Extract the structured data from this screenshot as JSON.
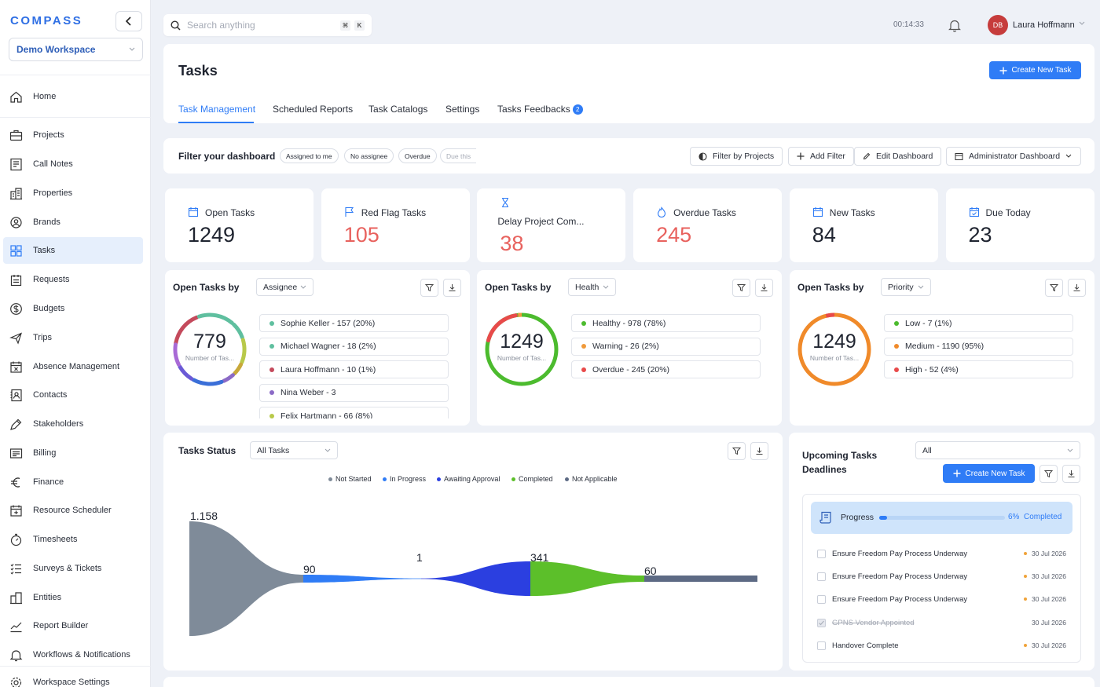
{
  "brand": {
    "logo": "COMPASS",
    "workspace": "Demo Workspace"
  },
  "nav": [
    {
      "label": "Home",
      "icon": "home-icon"
    },
    {
      "label": "Projects",
      "icon": "briefcase-icon"
    },
    {
      "label": "Call Notes",
      "icon": "notes-icon"
    },
    {
      "label": "Properties",
      "icon": "building-icon"
    },
    {
      "label": "Brands",
      "icon": "brand-icon"
    },
    {
      "label": "Tasks",
      "icon": "grid-icon",
      "active": true
    },
    {
      "label": "Requests",
      "icon": "requests-icon"
    },
    {
      "label": "Budgets",
      "icon": "dollar-icon"
    },
    {
      "label": "Trips",
      "icon": "plane-icon"
    },
    {
      "label": "Absence Management",
      "icon": "calendar-x-icon"
    },
    {
      "label": "Contacts",
      "icon": "contacts-icon"
    },
    {
      "label": "Stakeholders",
      "icon": "pen-icon"
    },
    {
      "label": "Billing",
      "icon": "billing-icon"
    },
    {
      "label": "Finance",
      "icon": "euro-icon"
    },
    {
      "label": "Resource Scheduler",
      "icon": "calendar-plus-icon"
    },
    {
      "label": "Timesheets",
      "icon": "stopwatch-icon"
    },
    {
      "label": "Surveys & Tickets",
      "icon": "checklist-icon"
    },
    {
      "label": "Entities",
      "icon": "entities-icon"
    },
    {
      "label": "Report Builder",
      "icon": "chart-icon"
    },
    {
      "label": "Workflows & Notifications",
      "icon": "bell-icon"
    },
    {
      "label": "Workspace Settings",
      "icon": "gear-icon"
    }
  ],
  "topbar": {
    "search_placeholder": "Search anything",
    "kbd1": "⌘",
    "kbd2": "K",
    "timer": "00:14:33",
    "avatar_initials": "DB",
    "user_name": "Laura Hoffmann"
  },
  "page": {
    "title": "Tasks",
    "create_button": "Create New Task"
  },
  "tabs": [
    {
      "label": "Task Management"
    },
    {
      "label": "Scheduled Reports"
    },
    {
      "label": "Task Catalogs"
    },
    {
      "label": "Settings"
    },
    {
      "label": "Tasks Feedbacks",
      "badge": "2"
    }
  ],
  "filter": {
    "title": "Filter your dashboard",
    "chips": [
      "Assigned to me",
      "No assignee",
      "Overdue",
      "Due this"
    ],
    "filter_projects": "Filter by Projects",
    "add_filter": "Add Filter",
    "edit_dashboard": "Edit Dashboard",
    "admin_dashboard": "Administrator Dashboard"
  },
  "stats": [
    {
      "label": "Open Tasks",
      "value": "1249",
      "icon": "calendar-icon"
    },
    {
      "label": "Red Flag Tasks",
      "value": "105",
      "icon": "flag-icon",
      "color": "#e8625e"
    },
    {
      "label": "Delay Project Com...",
      "value": "38",
      "icon": "hourglass-icon",
      "color": "#e8625e"
    },
    {
      "label": "Overdue Tasks",
      "value": "245",
      "icon": "fire-icon",
      "color": "#e8625e"
    },
    {
      "label": "New Tasks",
      "value": "84",
      "icon": "calendar-icon"
    },
    {
      "label": "Due Today",
      "value": "23",
      "icon": "calendar-check-icon"
    }
  ],
  "panels": [
    {
      "title": "Open Tasks by",
      "select": "Assignee",
      "total": "779",
      "sub": "Number of Tas...",
      "legend": [
        {
          "label": "Sophie Keller - 157 (20%)",
          "color": "#5fbf9f"
        },
        {
          "label": "Michael Wagner - 18 (2%)",
          "color": "#5fbf9f"
        },
        {
          "label": "Laura Hoffmann - 10 (1%)",
          "color": "#c44a5c"
        },
        {
          "label": "Nina Weber - 3",
          "color": "#8b6ac6"
        },
        {
          "label": "Felix Hartmann - 66 (8%)",
          "color": "#b8c94a"
        }
      ]
    },
    {
      "title": "Open Tasks by",
      "select": "Health",
      "total": "1249",
      "sub": "Number of Tas...",
      "legend": [
        {
          "label": "Healthy - 978 (78%)",
          "color": "#4cbb2e"
        },
        {
          "label": "Warning - 26 (2%)",
          "color": "#f09a3a"
        },
        {
          "label": "Overdue - 245 (20%)",
          "color": "#e84a4a"
        }
      ]
    },
    {
      "title": "Open Tasks by",
      "select": "Priority",
      "total": "1249",
      "sub": "Number of Tas...",
      "legend": [
        {
          "label": "Low - 7 (1%)",
          "color": "#4cbb2e"
        },
        {
          "label": "Medium - 1190 (95%)",
          "color": "#f08a2a"
        },
        {
          "label": "High - 52 (4%)",
          "color": "#e84a4a"
        }
      ]
    }
  ],
  "status": {
    "title": "Tasks Status",
    "select": "All Tasks"
  },
  "chart_data": {
    "type": "area",
    "title": "Tasks Status",
    "categories": [
      "Not Started",
      "In Progress",
      "Awaiting Approval",
      "Completed",
      "Not Applicable"
    ],
    "values": [
      1158,
      90,
      1,
      341,
      60
    ],
    "labels": [
      "1.158",
      "90",
      "1",
      "341",
      "60"
    ],
    "series_colors": [
      "#7f8b99",
      "#2f7cf6",
      "#2b3fe0",
      "#5cbf2a",
      "#5d6a84"
    ],
    "legend_position": "top-center"
  },
  "upcoming": {
    "title": "Upcoming Tasks Deadlines",
    "select": "All",
    "create_button": "Create New Task",
    "progress_label": "Progress",
    "progress_value": 0.06,
    "progress_pct": "6%",
    "progress_status": "Completed",
    "tasks": [
      {
        "label": "Ensure Freedom Pay Process Underway",
        "date": "30 Jul 2026",
        "done": false
      },
      {
        "label": "Ensure Freedom Pay Process Underway",
        "date": "30 Jul 2026",
        "done": false
      },
      {
        "label": "Ensure Freedom Pay Process Underway",
        "date": "30 Jul 2026",
        "done": false
      },
      {
        "label": "GPNS Vendor Appointed",
        "date": "30 Jul 2026",
        "done": true
      },
      {
        "label": "Handover Complete",
        "date": "30 Jul 2026",
        "done": false
      }
    ]
  }
}
